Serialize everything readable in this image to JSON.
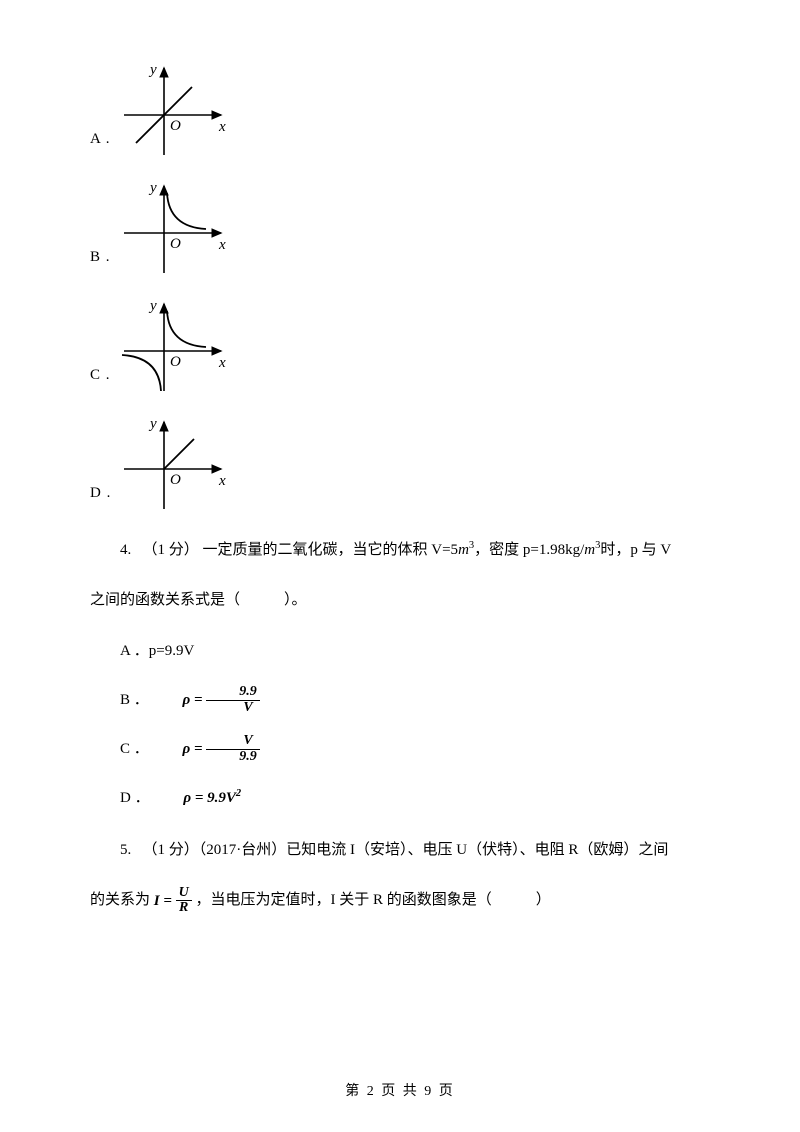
{
  "options_graphs": {
    "axis_color": "#000000",
    "axis_width": 1.6,
    "curve_width": 1.8,
    "label_font": "italic 15px Times New Roman",
    "items": [
      {
        "label": "A .",
        "type": "linear_pos",
        "name": "option-a"
      },
      {
        "label": "B .",
        "type": "hyperbola_q1",
        "name": "option-b"
      },
      {
        "label": "C .",
        "type": "hyperbola_q1q3",
        "name": "option-c"
      },
      {
        "label": "D .",
        "type": "linear_q1",
        "name": "option-d"
      }
    ]
  },
  "q4": {
    "number": "4.",
    "points": "（1 分）",
    "text_a": "一定质量的二氧化碳，当它的体积 V=5",
    "unit1": "m",
    "sup1": "3",
    "text_b": "，密度 p=1.98kg/",
    "unit2": "m",
    "sup2": "3",
    "text_c": "时，p 与 V",
    "line2": "之间的函数关系式是（",
    "line2b": "）。",
    "opts": {
      "A": "A ．p=9.9V",
      "B_prefix": "B ．",
      "B_lhs": "ρ = ",
      "B_num": "9.9",
      "B_den": "V",
      "C_prefix": "C ．",
      "C_lhs": "ρ = ",
      "C_num": "V",
      "C_den": "9.9",
      "D_prefix": "D ．",
      "D_expr": "ρ = 9.9V",
      "D_sup": "2"
    }
  },
  "q5": {
    "number": "5.",
    "points": "（1 分）",
    "src": "（2017·台州）",
    "text_a": "已知电流 I（安培）、电压 U（伏特）、电阻 R（欧姆）之间",
    "line2a": "的关系为 ",
    "I_lhs": "I = ",
    "I_num": "U",
    "I_den": "R",
    "line2b": " ，当电压为定值时，I 关于 R 的函数图象是（",
    "line2c": "）"
  },
  "footer": {
    "text": "第 2 页 共 9 页"
  }
}
